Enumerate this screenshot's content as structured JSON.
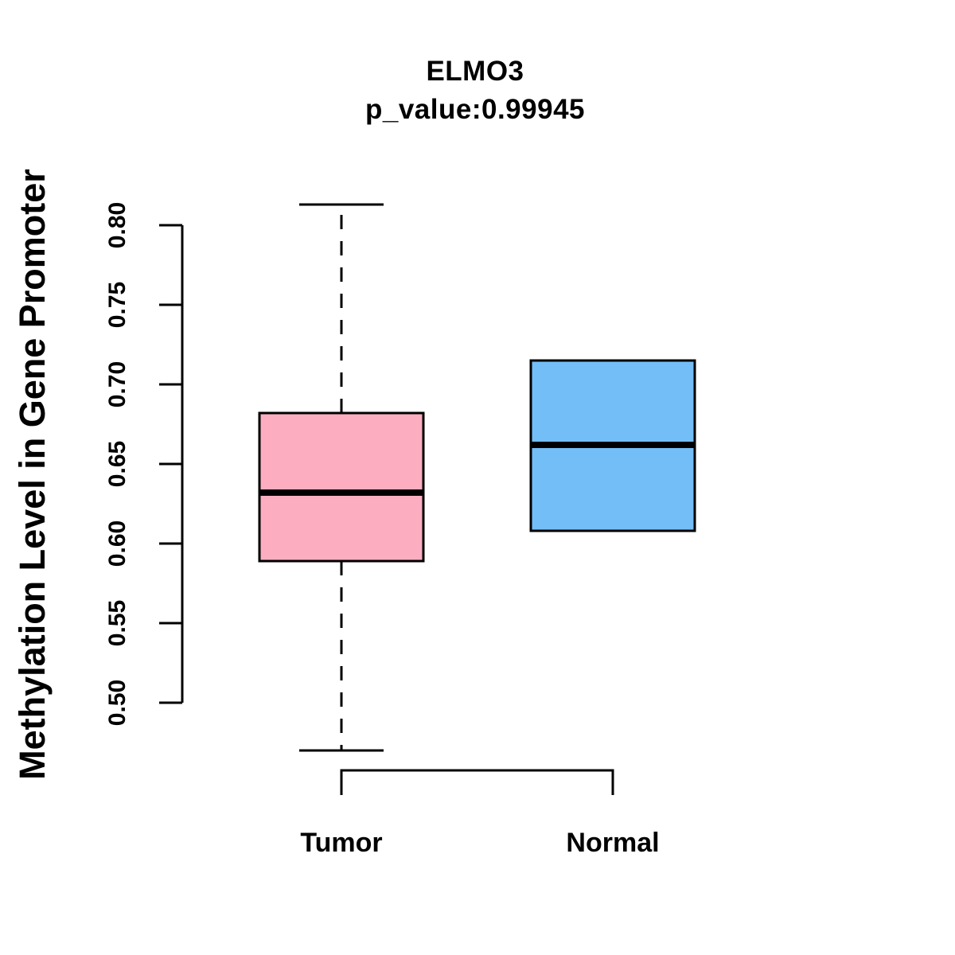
{
  "title": {
    "line1": "ELMO3",
    "line2": "p_value:0.99945"
  },
  "y_axis": {
    "label": "Methylation Level in Gene Promoter",
    "tick_labels": [
      "0.50",
      "0.55",
      "0.60",
      "0.65",
      "0.70",
      "0.75",
      "0.80"
    ]
  },
  "x_axis": {
    "categories": [
      "Tumor",
      "Normal"
    ]
  },
  "colors": {
    "tumor_fill": "#FCAEC0",
    "normal_fill": "#74BEF7",
    "stroke": "#000000",
    "background": "#FFFFFF"
  },
  "chart_data": {
    "type": "boxplot",
    "title": "ELMO3",
    "subtitle": "p_value:0.99945",
    "xlabel": "",
    "ylabel": "Methylation Level in Gene Promoter",
    "categories": [
      "Tumor",
      "Normal"
    ],
    "ylim": [
      0.47,
      0.815
    ],
    "y_ticks": [
      0.5,
      0.55,
      0.6,
      0.65,
      0.7,
      0.75,
      0.8
    ],
    "grid": false,
    "legend": "none",
    "series": [
      {
        "name": "Tumor",
        "fill": "#FCAEC0",
        "lower_whisker": 0.47,
        "q1": 0.589,
        "median": 0.632,
        "q3": 0.682,
        "upper_whisker": 0.813
      },
      {
        "name": "Normal",
        "fill": "#74BEF7",
        "lower_whisker": 0.608,
        "q1": 0.608,
        "median": 0.662,
        "q3": 0.715,
        "upper_whisker": 0.715
      }
    ]
  }
}
